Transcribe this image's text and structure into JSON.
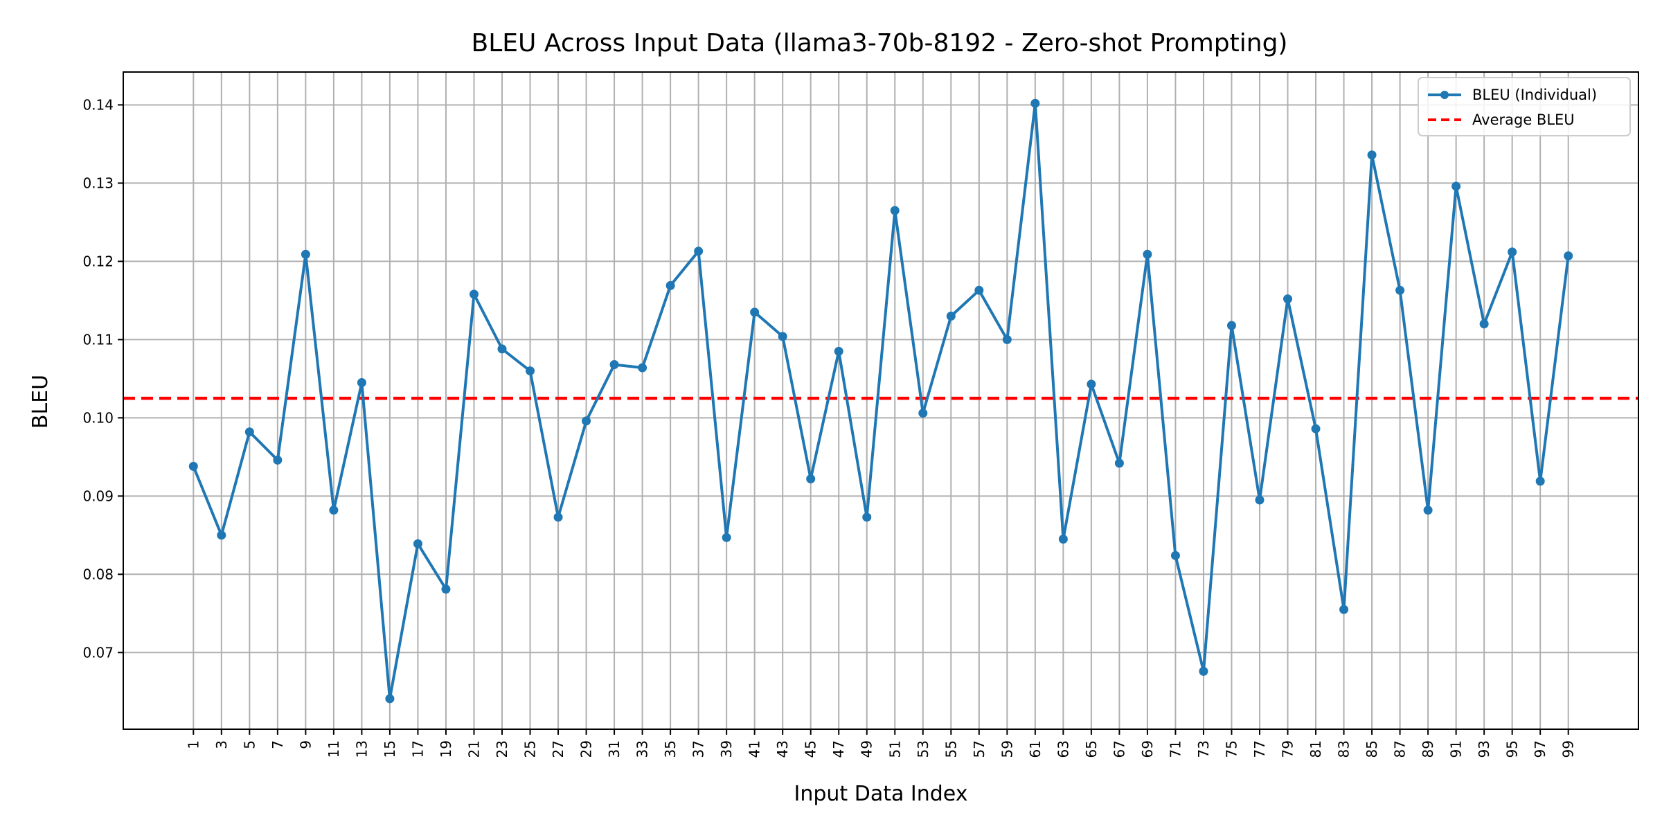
{
  "chart_data": {
    "type": "line",
    "title": "BLEU Across Input Data (llama3-70b-8192 - Zero-shot Prompting)",
    "xlabel": "Input Data Index",
    "ylabel": "BLEU",
    "x": [
      1,
      3,
      5,
      7,
      9,
      11,
      13,
      15,
      17,
      19,
      21,
      23,
      25,
      27,
      29,
      31,
      33,
      35,
      37,
      39,
      41,
      43,
      45,
      47,
      49,
      51,
      53,
      55,
      57,
      59,
      61,
      63,
      65,
      67,
      69,
      71,
      73,
      75,
      77,
      79,
      81,
      83,
      85,
      87,
      89,
      91,
      93,
      95,
      97,
      99
    ],
    "x_tick_labels": [
      "1",
      "3",
      "5",
      "7",
      "9",
      "11",
      "13",
      "15",
      "17",
      "19",
      "21",
      "23",
      "25",
      "27",
      "29",
      "31",
      "33",
      "35",
      "37",
      "39",
      "41",
      "43",
      "45",
      "47",
      "49",
      "51",
      "53",
      "55",
      "57",
      "59",
      "61",
      "63",
      "65",
      "67",
      "69",
      "71",
      "73",
      "75",
      "77",
      "79",
      "81",
      "83",
      "85",
      "87",
      "89",
      "91",
      "93",
      "95",
      "97",
      "99"
    ],
    "y_ticks": [
      0.07,
      0.08,
      0.09,
      0.1,
      0.11,
      0.12,
      0.13,
      0.14
    ],
    "y_tick_labels": [
      "0.07",
      "0.08",
      "0.09",
      "0.10",
      "0.11",
      "0.12",
      "0.13",
      "0.14"
    ],
    "xlim": [
      -4.0,
      104.0
    ],
    "ylim": [
      0.0602,
      0.1442
    ],
    "grid": true,
    "legend_position": "top-right",
    "series": [
      {
        "name": "BLEU (Individual)",
        "color": "#1f77b4",
        "style": "solid-with-markers",
        "values": [
          0.0938,
          0.085,
          0.0982,
          0.0946,
          0.1209,
          0.0882,
          0.1045,
          0.0641,
          0.0839,
          0.0781,
          0.1158,
          0.1088,
          0.106,
          0.0873,
          0.0996,
          0.1068,
          0.1064,
          0.1169,
          0.1213,
          0.0847,
          0.1135,
          0.1104,
          0.0922,
          0.1085,
          0.0873,
          0.1265,
          0.1006,
          0.113,
          0.1163,
          0.11,
          0.1402,
          0.0845,
          0.1043,
          0.0942,
          0.1209,
          0.0824,
          0.0676,
          0.1118,
          0.0895,
          0.1152,
          0.0986,
          0.0755,
          0.1336,
          0.1163,
          0.0882,
          0.1296,
          0.112,
          0.1212,
          0.0919,
          0.1207
        ]
      },
      {
        "name": "Average BLEU",
        "color": "#ff0000",
        "style": "dashed",
        "value": 0.1025
      }
    ]
  }
}
